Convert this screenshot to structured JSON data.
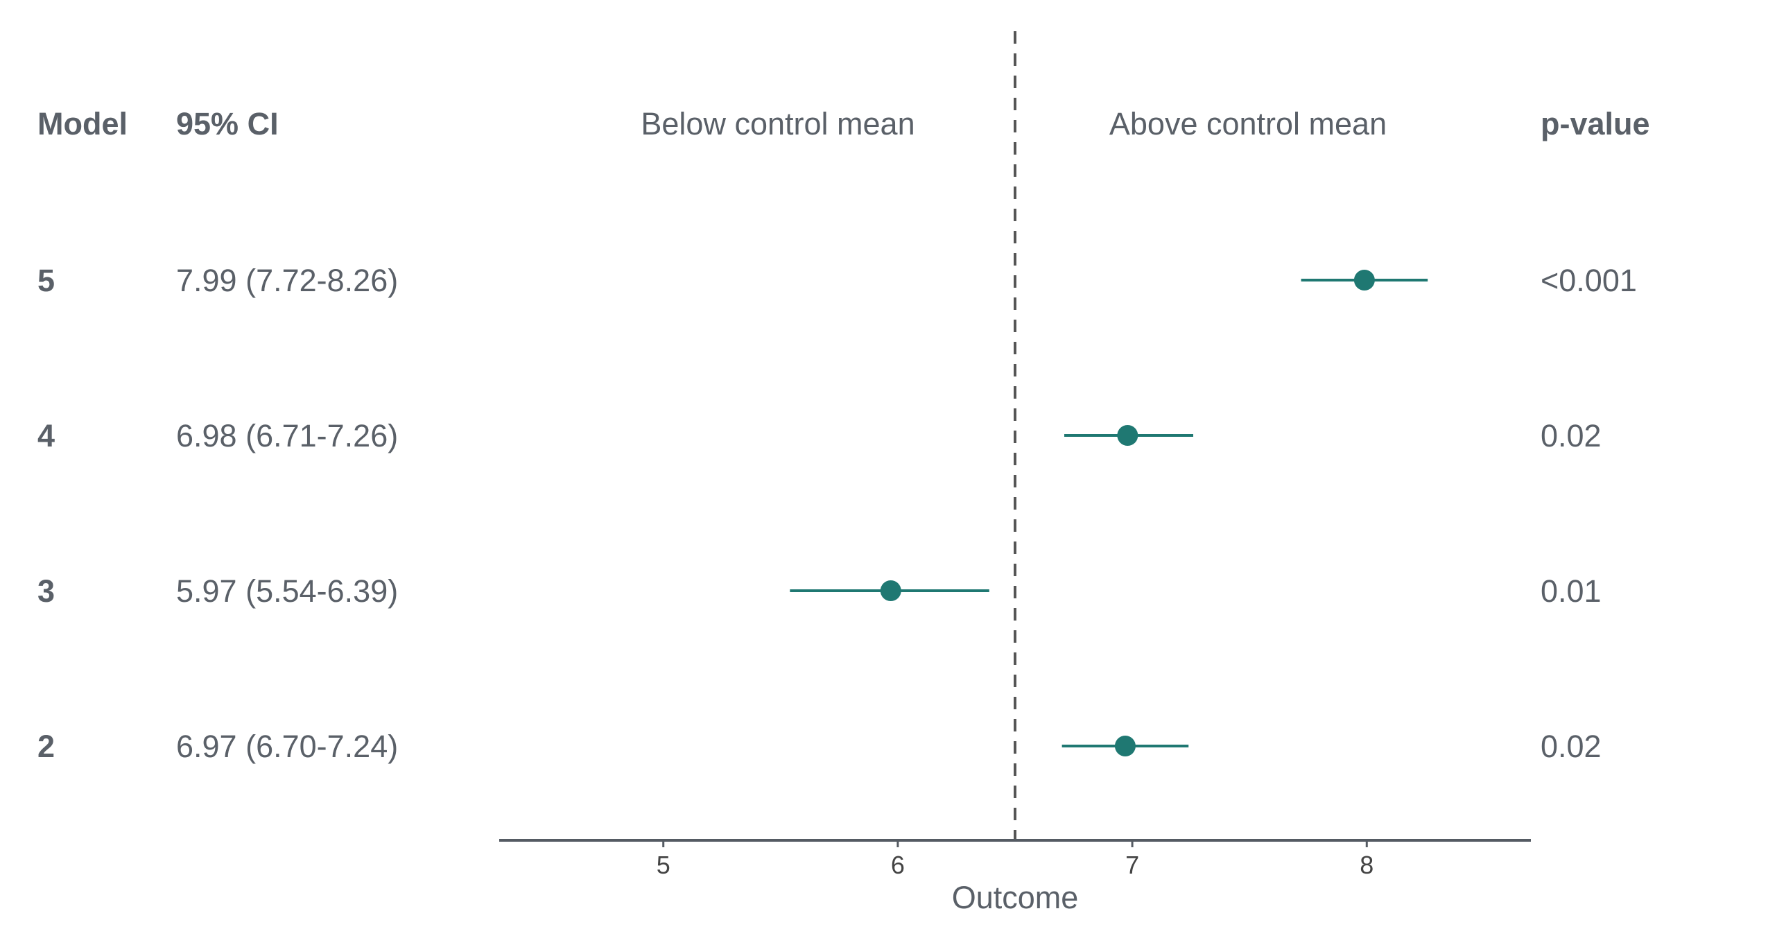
{
  "chart_data": {
    "type": "forest",
    "headers": {
      "model": "Model",
      "ci": "95% CI",
      "below": "Below control mean",
      "above": "Above control mean",
      "pvalue": "p-value"
    },
    "rows": [
      {
        "model": "5",
        "estimate": 7.99,
        "lower": 7.72,
        "upper": 8.26,
        "ci_label": "7.99 (7.72-8.26)",
        "p_label": "<0.001"
      },
      {
        "model": "4",
        "estimate": 6.98,
        "lower": 6.71,
        "upper": 7.26,
        "ci_label": "6.98 (6.71-7.26)",
        "p_label": "0.02"
      },
      {
        "model": "3",
        "estimate": 5.97,
        "lower": 5.54,
        "upper": 6.39,
        "ci_label": "5.97 (5.54-6.39)",
        "p_label": "0.01"
      },
      {
        "model": "2",
        "estimate": 6.97,
        "lower": 6.7,
        "upper": 7.24,
        "ci_label": "6.97 (6.70-7.24)",
        "p_label": "0.02"
      }
    ],
    "reference_line": 6.5,
    "xlim": [
      4.3,
      8.7
    ],
    "xticks": [
      5,
      6,
      7,
      8
    ],
    "xlabel": "Outcome",
    "colors": {
      "point": "#1f7872",
      "text": "#5a6068",
      "axis": "#555b63",
      "reference": "#555555"
    }
  }
}
